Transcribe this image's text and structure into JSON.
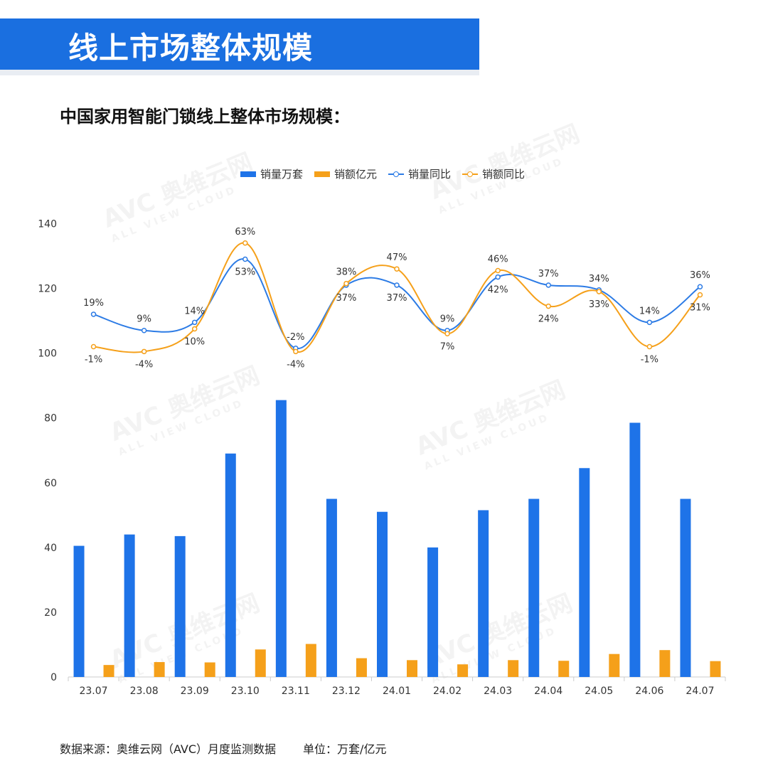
{
  "banner": {
    "title": "线上市场整体规模"
  },
  "subtitle": "中国家用智能门锁线上整体市场规模：",
  "legend": {
    "bar1": "销量万套",
    "bar2": "销额亿元",
    "line1": "销量同比",
    "line2": "销额同比"
  },
  "footer": {
    "source": "数据来源：奥维云网（AVC）月度监测数据",
    "unit": "单位：万套/亿元"
  },
  "watermark": {
    "brand": "AVC 奥维云网",
    "sub": "ALL VIEW CLOUD"
  },
  "colors": {
    "banner": "#1a6fe0",
    "bar1": "#1e73e8",
    "bar2": "#f5a01a",
    "line1": "#2c7be5",
    "line2": "#f5a01a"
  },
  "chart_data": {
    "type": "bar+line",
    "categories": [
      "23.07",
      "23.08",
      "23.09",
      "23.10",
      "23.11",
      "23.12",
      "24.01",
      "24.02",
      "24.03",
      "24.04",
      "24.05",
      "24.06",
      "24.07"
    ],
    "series": [
      {
        "name": "销量万套",
        "type": "bar",
        "values": [
          40.5,
          44,
          43.5,
          69,
          85.5,
          55,
          51,
          40,
          51.5,
          55,
          64.5,
          78.5,
          55
        ]
      },
      {
        "name": "销额亿元",
        "type": "bar",
        "values": [
          3.7,
          4.6,
          4.5,
          8.5,
          10.2,
          5.8,
          5.2,
          3.9,
          5.2,
          5.0,
          7.1,
          8.3,
          4.9
        ]
      },
      {
        "name": "销量同比",
        "type": "line",
        "values": [
          19,
          9,
          14,
          53,
          -2,
          37,
          37,
          9,
          42,
          37,
          34,
          14,
          36
        ],
        "labels": [
          "19%",
          "9%",
          "14%",
          "53%",
          "-2%",
          "37%",
          "37%",
          "9%",
          "42%",
          "37%",
          "34%",
          "14%",
          "36%"
        ]
      },
      {
        "name": "销额同比",
        "type": "line",
        "values": [
          -1,
          -4,
          10,
          63,
          -4,
          38,
          47,
          7,
          46,
          24,
          33,
          -1,
          31
        ],
        "labels": [
          "-1%",
          "-4%",
          "10%",
          "63%",
          "-4%",
          "38%",
          "47%",
          "7%",
          "46%",
          "24%",
          "33%",
          "-1%",
          "31%"
        ]
      }
    ],
    "y_ticks": [
      0,
      20,
      40,
      60,
      80,
      100,
      120,
      140
    ],
    "ylim": [
      0,
      140
    ]
  }
}
